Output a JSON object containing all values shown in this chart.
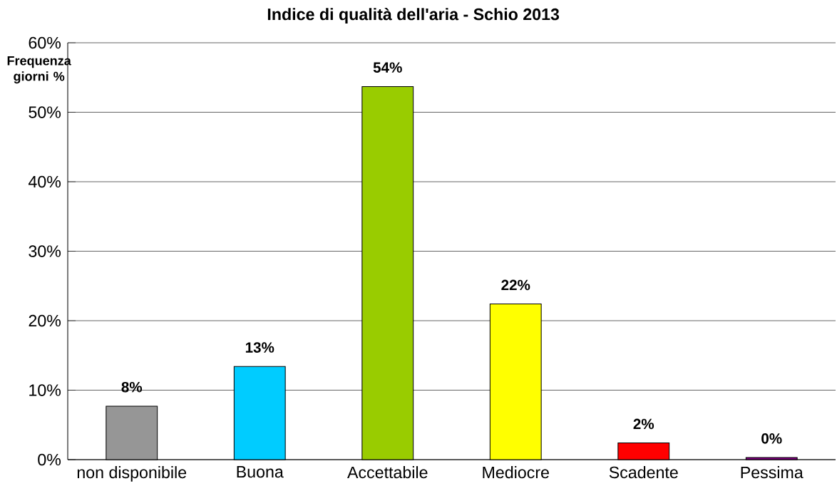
{
  "chart_data": {
    "type": "bar",
    "title": "Indice di qualità dell'aria - Schio 2013",
    "ylabel": "Frequenza giorni %",
    "categories": [
      "non disponibile",
      "Buona",
      "Accettabile",
      "Mediocre",
      "Scadente",
      "Pessima"
    ],
    "values": [
      7.7,
      13.4,
      53.7,
      22.4,
      2.4,
      0.3
    ],
    "colors": [
      "#969696",
      "#00ccff",
      "#99cc00",
      "#ffff00",
      "#ff0000",
      "#800080"
    ],
    "value_labels": [
      "8%",
      "13%",
      "54%",
      "22%",
      "2%",
      "0%"
    ],
    "ylim": [
      0,
      60
    ],
    "yticks": [
      {
        "value": 0,
        "label": "0%"
      },
      {
        "value": 10,
        "label": "10%"
      },
      {
        "value": 20,
        "label": "20%"
      },
      {
        "value": 30,
        "label": "30%"
      },
      {
        "value": 40,
        "label": "40%"
      },
      {
        "value": 50,
        "label": "50%"
      },
      {
        "value": 60,
        "label": "60%"
      }
    ],
    "grid": "y"
  }
}
